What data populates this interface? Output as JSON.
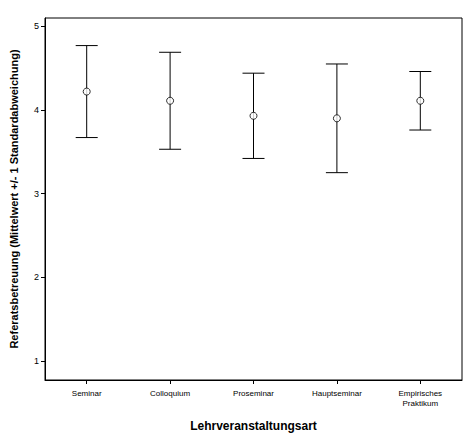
{
  "chart_data": {
    "type": "errorbar",
    "x_label": "Lehrveranstaltungsart",
    "y_label": "Referatsbetreuung (Mittelwert +/- 1 Standardabweichung)",
    "categories": [
      "Seminar",
      "Colloquium",
      "Proseminar",
      "Hauptseminar",
      "Empirisches Praktikum"
    ],
    "values": [
      4.22,
      4.11,
      3.93,
      3.9,
      4.11
    ],
    "errors": [
      0.55,
      0.58,
      0.51,
      0.65,
      0.35
    ],
    "color": "#000000",
    "marker": "circle",
    "ylim": [
      0.77,
      5.1
    ],
    "yticks": [
      1,
      2,
      3,
      4,
      5
    ],
    "grid": false
  }
}
